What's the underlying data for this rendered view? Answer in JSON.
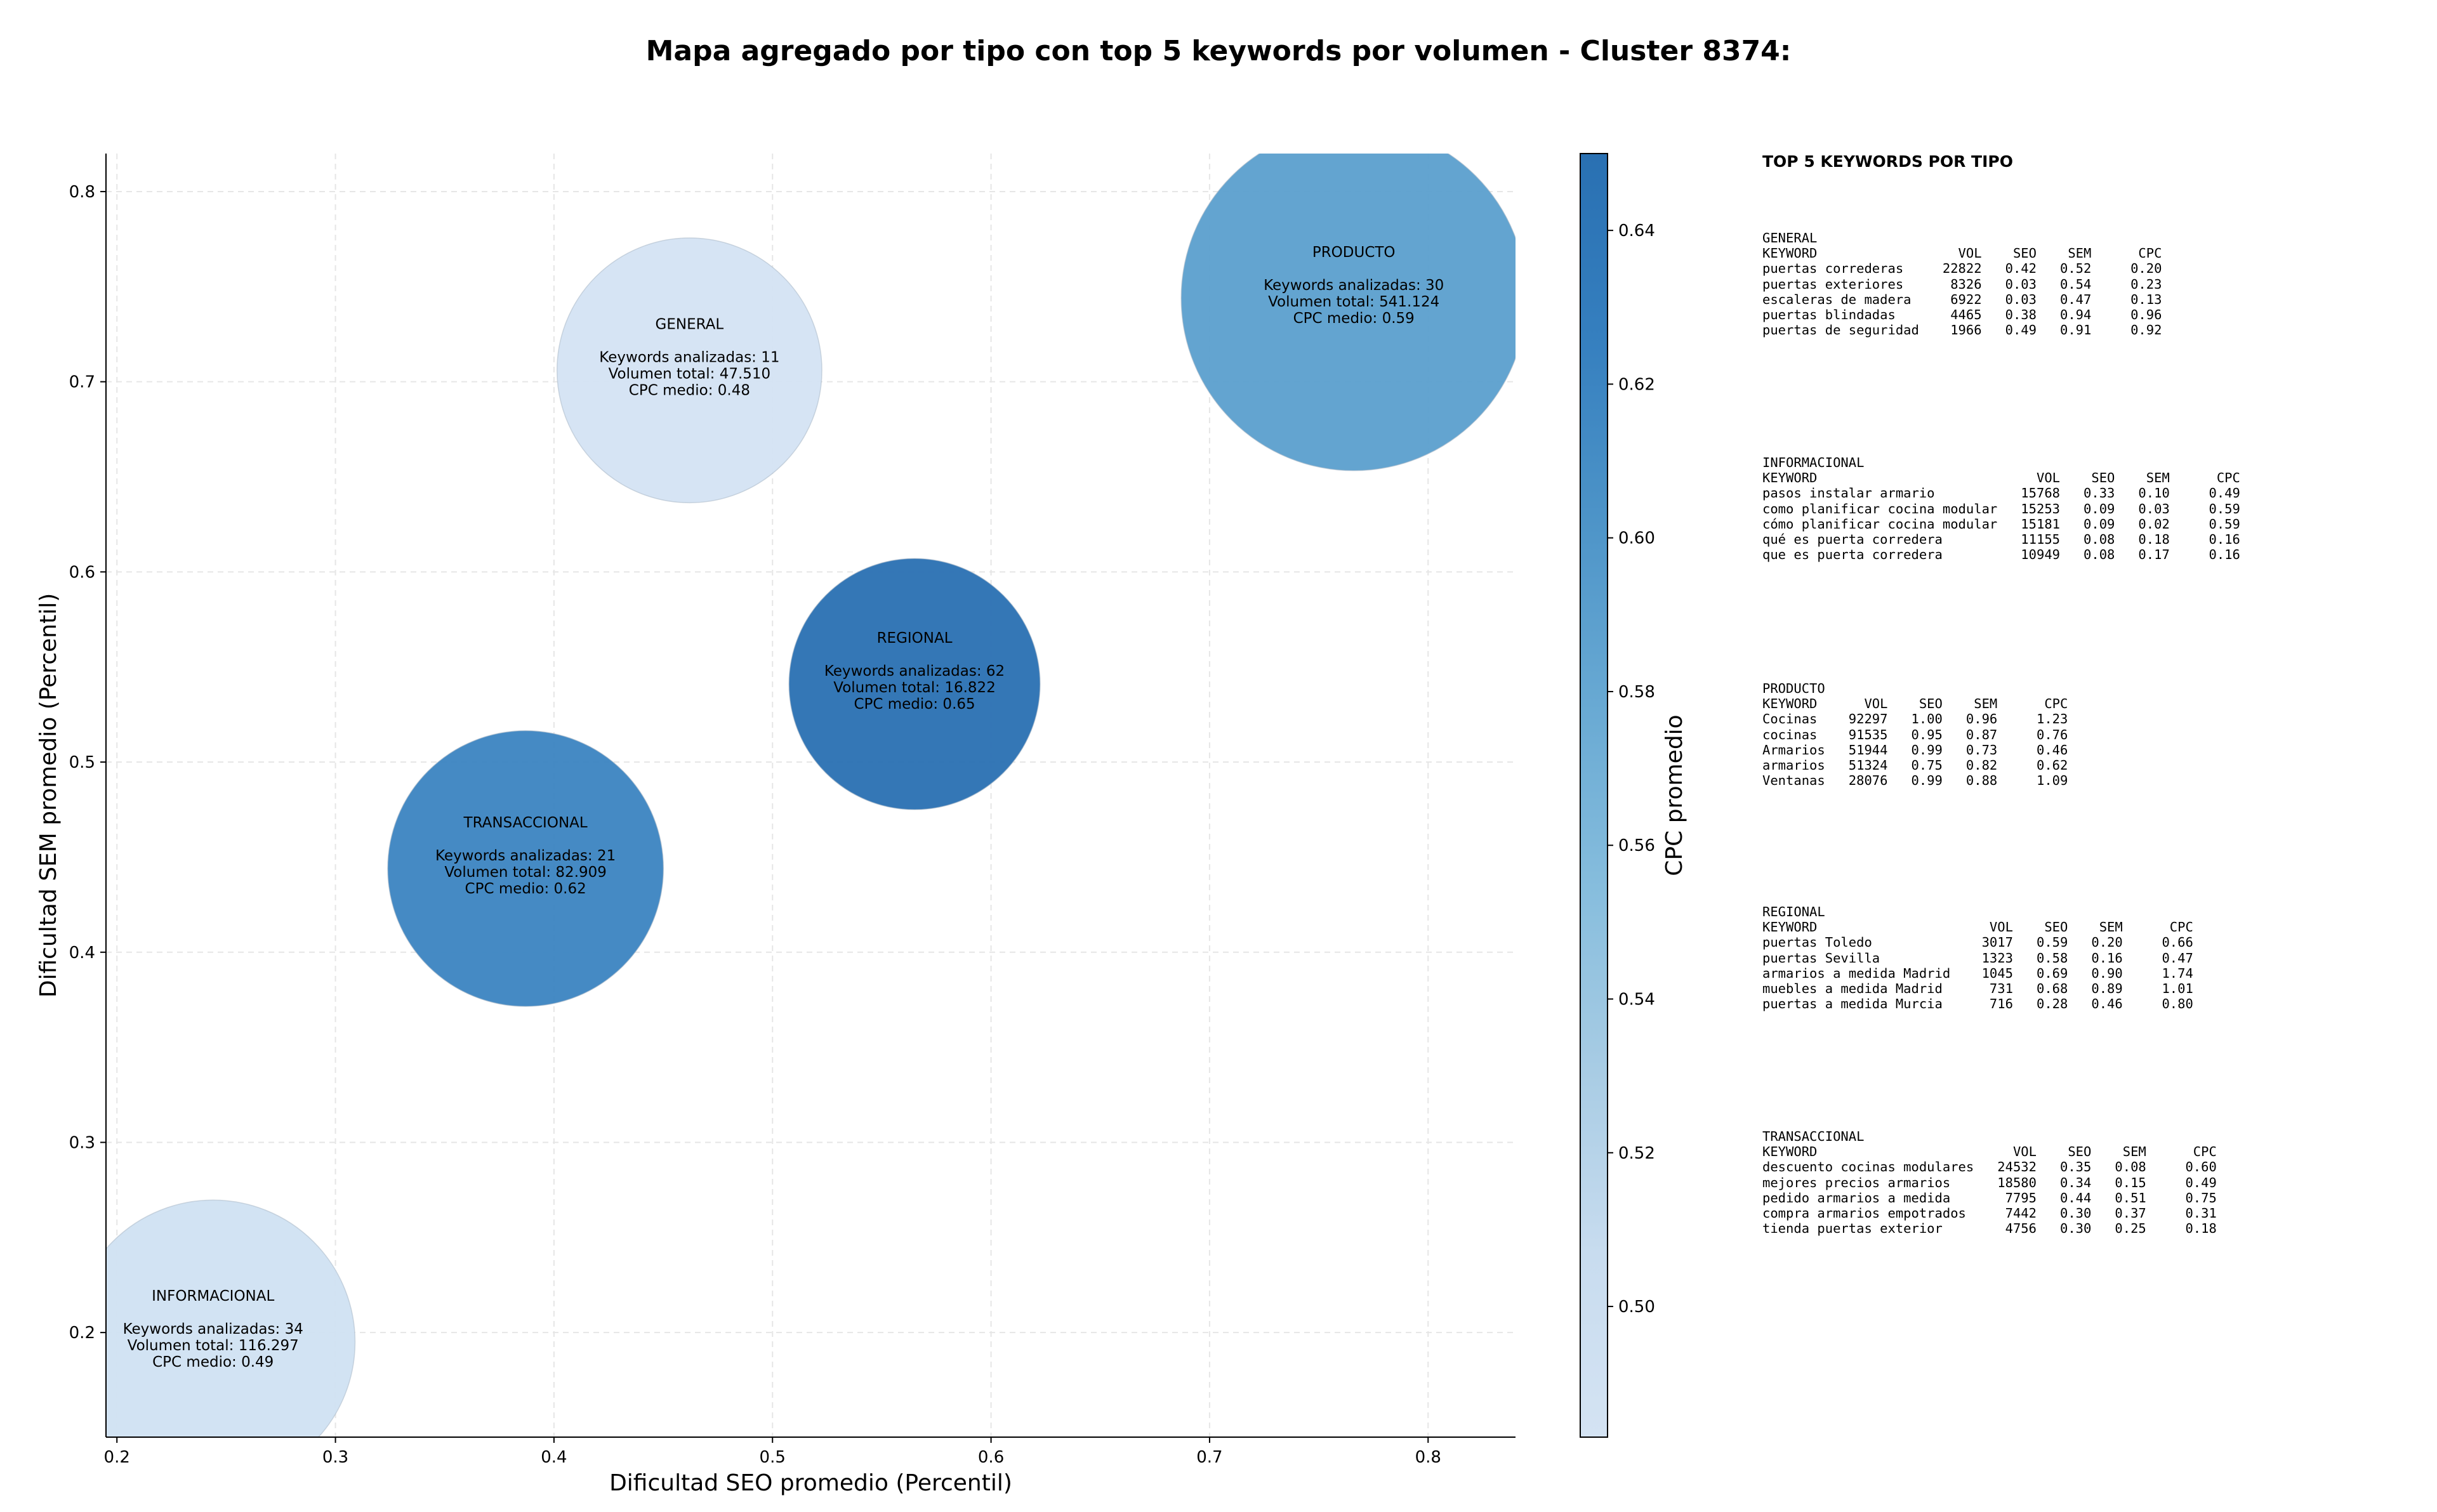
{
  "chart_data": {
    "type": "scatter",
    "title": "Mapa agregado por tipo con top 5 keywords por volumen - Cluster 8374:",
    "xlabel": "Dificultad SEO promedio (Percentil)",
    "ylabel": "Dificultad SEM promedio (Percentil)",
    "xlim": [
      0.195,
      0.84
    ],
    "ylim": [
      0.145,
      0.82
    ],
    "xticks": [
      0.2,
      0.3,
      0.4,
      0.5,
      0.6,
      0.7,
      0.8
    ],
    "yticks": [
      0.2,
      0.3,
      0.4,
      0.5,
      0.6,
      0.7,
      0.8
    ],
    "grid": true,
    "size_encoding": "Volumen total",
    "color_encoding": "CPC medio",
    "colorbar": {
      "label": "CPC promedio",
      "range": [
        0.483,
        0.65
      ],
      "ticks": [
        0.5,
        0.52,
        0.54,
        0.56,
        0.58,
        0.6,
        0.62,
        0.64
      ],
      "tick_labels": [
        "0.50",
        "0.52",
        "0.54",
        "0.56",
        "0.58",
        "0.60",
        "0.62",
        "0.64"
      ],
      "colors": [
        "#d4e3f3",
        "#c8dcef",
        "#a8cce4",
        "#86bddd",
        "#68a9d3",
        "#4d94c8",
        "#357fbf",
        "#2970b2"
      ]
    },
    "points": [
      {
        "name": "GENERAL",
        "x": 0.462,
        "y": 0.706,
        "keywords": 11,
        "volume": 47510,
        "cpc": 0.48,
        "label_keywords": "Keywords analizadas: 11",
        "label_volume": "Volumen total: 47.510",
        "label_cpc": "CPC medio: 0.48"
      },
      {
        "name": "PRODUCTO",
        "x": 0.766,
        "y": 0.744,
        "keywords": 30,
        "volume": 541124,
        "cpc": 0.59,
        "label_keywords": "Keywords analizadas: 30",
        "label_volume": "Volumen total: 541.124",
        "label_cpc": "CPC medio: 0.59"
      },
      {
        "name": "REGIONAL",
        "x": 0.565,
        "y": 0.541,
        "keywords": 62,
        "volume": 16822,
        "cpc": 0.65,
        "label_keywords": "Keywords analizadas: 62",
        "label_volume": "Volumen total: 16.822",
        "label_cpc": "CPC medio: 0.65"
      },
      {
        "name": "TRANSACCIONAL",
        "x": 0.387,
        "y": 0.444,
        "keywords": 21,
        "volume": 82909,
        "cpc": 0.62,
        "label_keywords": "Keywords analizadas: 21",
        "label_volume": "Volumen total: 82.909",
        "label_cpc": "CPC medio: 0.62"
      },
      {
        "name": "INFORMACIONAL",
        "x": 0.244,
        "y": 0.195,
        "keywords": 34,
        "volume": 116297,
        "cpc": 0.49,
        "label_keywords": "Keywords analizadas: 34",
        "label_volume": "Volumen total: 116.297",
        "label_cpc": "CPC medio: 0.49"
      }
    ]
  },
  "keyword_tables": {
    "title": "TOP 5 KEYWORDS POR TIPO",
    "blocks": [
      {
        "lines": [
          "GENERAL",
          "KEYWORD                  VOL    SEO    SEM      CPC",
          "puertas correderas     22822   0.42   0.52     0.20",
          "puertas exteriores      8326   0.03   0.54     0.23",
          "escaleras de madera     6922   0.03   0.47     0.13",
          "puertas blindadas       4465   0.38   0.94     0.96",
          "puertas de seguridad    1966   0.49   0.91     0.92"
        ]
      },
      {
        "lines": [
          "INFORMACIONAL",
          "KEYWORD                            VOL    SEO    SEM      CPC",
          "pasos instalar armario           15768   0.33   0.10     0.49",
          "como planificar cocina modular   15253   0.09   0.03     0.59",
          "cómo planificar cocina modular   15181   0.09   0.02     0.59",
          "qué es puerta corredera          11155   0.08   0.18     0.16",
          "que es puerta corredera          10949   0.08   0.17     0.16"
        ]
      },
      {
        "lines": [
          "PRODUCTO",
          "KEYWORD      VOL    SEO    SEM      CPC",
          "Cocinas    92297   1.00   0.96     1.23",
          "cocinas    91535   0.95   0.87     0.76",
          "Armarios   51944   0.99   0.73     0.46",
          "armarios   51324   0.75   0.82     0.62",
          "Ventanas   28076   0.99   0.88     1.09"
        ]
      },
      {
        "lines": [
          "REGIONAL",
          "KEYWORD                      VOL    SEO    SEM      CPC",
          "puertas Toledo              3017   0.59   0.20     0.66",
          "puertas Sevilla             1323   0.58   0.16     0.47",
          "armarios a medida Madrid    1045   0.69   0.90     1.74",
          "muebles a medida Madrid      731   0.68   0.89     1.01",
          "puertas a medida Murcia      716   0.28   0.46     0.80"
        ]
      },
      {
        "lines": [
          "TRANSACCIONAL",
          "KEYWORD                         VOL    SEO    SEM      CPC",
          "descuento cocinas modulares   24532   0.35   0.08     0.60",
          "mejores precios armarios      18580   0.34   0.15     0.49",
          "pedido armarios a medida       7795   0.44   0.51     0.75",
          "compra armarios empotrados     7442   0.30   0.37     0.31",
          "tienda puertas exterior        4756   0.30   0.25     0.18"
        ]
      }
    ]
  }
}
